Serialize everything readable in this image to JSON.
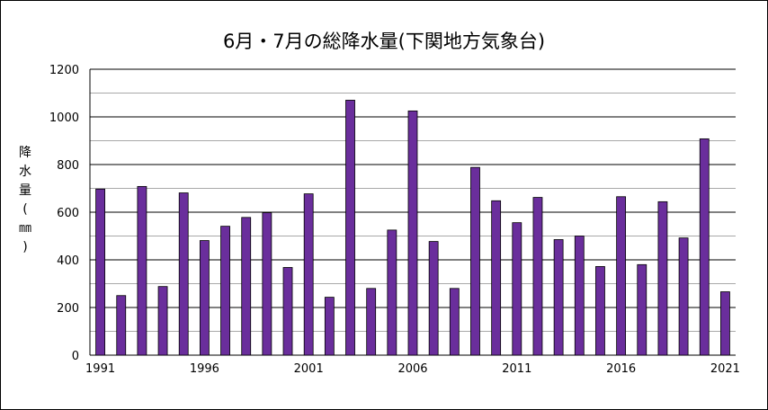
{
  "chart_data": {
    "type": "bar",
    "title": "6月・7月の総降水量(下関地方気象台)",
    "ylabel": "降水量(㎜)",
    "xlabel": "",
    "x": [
      1991,
      1992,
      1993,
      1994,
      1995,
      1996,
      1997,
      1998,
      1999,
      2000,
      2001,
      2002,
      2003,
      2004,
      2005,
      2006,
      2007,
      2008,
      2009,
      2010,
      2011,
      2012,
      2013,
      2014,
      2015,
      2016,
      2017,
      2018,
      2019,
      2020,
      2021
    ],
    "values": [
      697,
      250,
      708,
      288,
      681,
      481,
      541,
      578,
      598,
      368,
      677,
      243,
      1070,
      280,
      525,
      1025,
      477,
      280,
      788,
      648,
      556,
      662,
      485,
      500,
      372,
      665,
      380,
      644,
      492,
      908,
      266
    ],
    "x_ticks": [
      "1991",
      "1996",
      "2001",
      "2006",
      "2011",
      "2016",
      "2021"
    ],
    "y_ticks": [
      "0",
      "200",
      "400",
      "600",
      "800",
      "1000",
      "1200"
    ],
    "ylim": [
      0,
      1200
    ],
    "grid": true,
    "bar_color": "#6A2E9C"
  }
}
